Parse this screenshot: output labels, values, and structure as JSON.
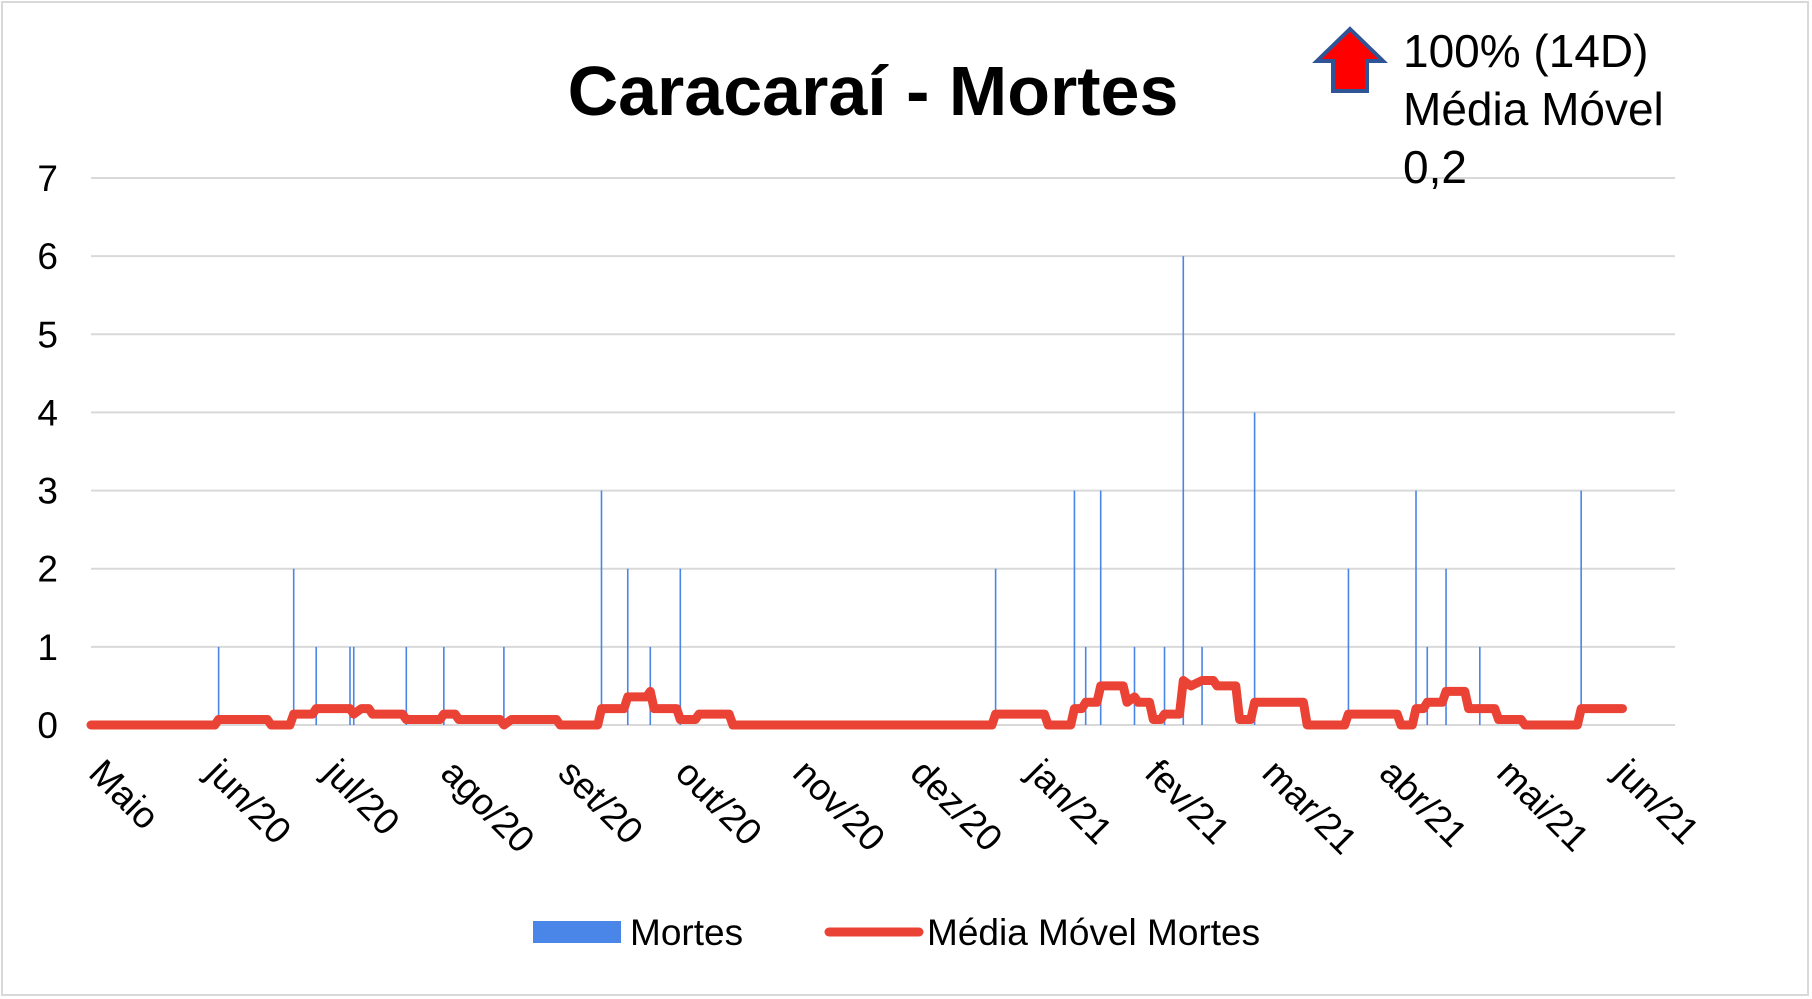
{
  "chart_data": {
    "type": "bar",
    "title": "Caracaraí - Mortes",
    "annotation": {
      "arrow_direction": "up",
      "arrow_color": "#ff0000",
      "arrow_border_color": "#2f5597",
      "lines": [
        "100% (14D)",
        "Média Móvel",
        "0,2"
      ]
    },
    "xlabel": "",
    "ylabel": "",
    "ylim": [
      0,
      7
    ],
    "yticks": [
      "0",
      "1",
      "2",
      "3",
      "4",
      "5",
      "6",
      "7"
    ],
    "grid": true,
    "legend_position": "bottom",
    "x_tick_labels": [
      "Maio",
      "jun/20",
      "jul/20",
      "ago/20",
      "set/20",
      "out/20",
      "nov/20",
      "dez/20",
      "jan/21",
      "fev/21",
      "mar/21",
      "abr/21",
      "mai/21",
      "jun/21"
    ],
    "x_range": [
      "2020-05-01",
      "2021-06-27"
    ],
    "series": [
      {
        "name": "Mortes",
        "type": "bar",
        "color": "#4a86e8",
        "points": [
          [
            "2020-06-04",
            1
          ],
          [
            "2020-06-24",
            2
          ],
          [
            "2020-06-30",
            1
          ],
          [
            "2020-07-09",
            1
          ],
          [
            "2020-07-10",
            1
          ],
          [
            "2020-07-24",
            1
          ],
          [
            "2020-08-03",
            1
          ],
          [
            "2020-08-19",
            1
          ],
          [
            "2020-09-14",
            3
          ],
          [
            "2020-09-21",
            2
          ],
          [
            "2020-09-27",
            1
          ],
          [
            "2020-10-05",
            2
          ],
          [
            "2020-12-28",
            2
          ],
          [
            "2021-01-18",
            3
          ],
          [
            "2021-01-21",
            1
          ],
          [
            "2021-01-25",
            3
          ],
          [
            "2021-02-03",
            1
          ],
          [
            "2021-02-11",
            1
          ],
          [
            "2021-02-16",
            6
          ],
          [
            "2021-02-21",
            1
          ],
          [
            "2021-03-07",
            4
          ],
          [
            "2021-04-01",
            2
          ],
          [
            "2021-04-19",
            3
          ],
          [
            "2021-04-22",
            1
          ],
          [
            "2021-04-27",
            2
          ],
          [
            "2021-05-06",
            1
          ],
          [
            "2021-06-02",
            3
          ]
        ]
      },
      {
        "name": "Média Móvel Mortes",
        "type": "line",
        "color": "#ea4335",
        "points": [
          [
            "2020-05-01",
            0
          ],
          [
            "2020-06-03",
            0
          ],
          [
            "2020-06-04",
            0.07
          ],
          [
            "2020-06-17",
            0.07
          ],
          [
            "2020-06-18",
            0
          ],
          [
            "2020-06-23",
            0
          ],
          [
            "2020-06-24",
            0.14
          ],
          [
            "2020-06-29",
            0.14
          ],
          [
            "2020-06-30",
            0.21
          ],
          [
            "2020-07-07",
            0.21
          ],
          [
            "2020-07-09",
            0.21
          ],
          [
            "2020-07-10",
            0.14
          ],
          [
            "2020-07-12",
            0.21
          ],
          [
            "2020-07-14",
            0.21
          ],
          [
            "2020-07-15",
            0.14
          ],
          [
            "2020-07-23",
            0.14
          ],
          [
            "2020-07-24",
            0.07
          ],
          [
            "2020-08-02",
            0.07
          ],
          [
            "2020-08-03",
            0.14
          ],
          [
            "2020-08-06",
            0.14
          ],
          [
            "2020-08-07",
            0.07
          ],
          [
            "2020-08-18",
            0.07
          ],
          [
            "2020-08-19",
            0
          ],
          [
            "2020-08-21",
            0.07
          ],
          [
            "2020-09-02",
            0.07
          ],
          [
            "2020-09-03",
            0
          ],
          [
            "2020-09-13",
            0
          ],
          [
            "2020-09-14",
            0.21
          ],
          [
            "2020-09-20",
            0.21
          ],
          [
            "2020-09-21",
            0.36
          ],
          [
            "2020-09-26",
            0.36
          ],
          [
            "2020-09-27",
            0.43
          ],
          [
            "2020-09-28",
            0.21
          ],
          [
            "2020-10-04",
            0.21
          ],
          [
            "2020-10-05",
            0.07
          ],
          [
            "2020-10-09",
            0.07
          ],
          [
            "2020-10-10",
            0.14
          ],
          [
            "2020-10-18",
            0.14
          ],
          [
            "2020-10-19",
            0
          ],
          [
            "2020-12-27",
            0
          ],
          [
            "2020-12-28",
            0.14
          ],
          [
            "2021-01-10",
            0.14
          ],
          [
            "2021-01-11",
            0
          ],
          [
            "2021-01-17",
            0
          ],
          [
            "2021-01-18",
            0.21
          ],
          [
            "2021-01-20",
            0.21
          ],
          [
            "2021-01-21",
            0.29
          ],
          [
            "2021-01-24",
            0.29
          ],
          [
            "2021-01-25",
            0.5
          ],
          [
            "2021-01-31",
            0.5
          ],
          [
            "2021-02-01",
            0.29
          ],
          [
            "2021-02-03",
            0.36
          ],
          [
            "2021-02-04",
            0.29
          ],
          [
            "2021-02-07",
            0.29
          ],
          [
            "2021-02-08",
            0.07
          ],
          [
            "2021-02-10",
            0.07
          ],
          [
            "2021-02-11",
            0.14
          ],
          [
            "2021-02-15",
            0.14
          ],
          [
            "2021-02-16",
            0.57
          ],
          [
            "2021-02-18",
            0.5
          ],
          [
            "2021-02-21",
            0.57
          ],
          [
            "2021-02-24",
            0.57
          ],
          [
            "2021-02-25",
            0.5
          ],
          [
            "2021-03-02",
            0.5
          ],
          [
            "2021-03-03",
            0.07
          ],
          [
            "2021-03-06",
            0.07
          ],
          [
            "2021-03-07",
            0.29
          ],
          [
            "2021-03-20",
            0.29
          ],
          [
            "2021-03-21",
            0
          ],
          [
            "2021-03-31",
            0
          ],
          [
            "2021-04-01",
            0.14
          ],
          [
            "2021-04-14",
            0.14
          ],
          [
            "2021-04-15",
            0
          ],
          [
            "2021-04-18",
            0
          ],
          [
            "2021-04-19",
            0.21
          ],
          [
            "2021-04-21",
            0.21
          ],
          [
            "2021-04-22",
            0.29
          ],
          [
            "2021-04-26",
            0.29
          ],
          [
            "2021-04-27",
            0.43
          ],
          [
            "2021-05-02",
            0.43
          ],
          [
            "2021-05-03",
            0.21
          ],
          [
            "2021-05-10",
            0.21
          ],
          [
            "2021-05-11",
            0.07
          ],
          [
            "2021-05-17",
            0.07
          ],
          [
            "2021-05-18",
            0
          ],
          [
            "2021-06-01",
            0
          ],
          [
            "2021-06-02",
            0.21
          ],
          [
            "2021-06-13",
            0.21
          ]
        ]
      }
    ]
  }
}
